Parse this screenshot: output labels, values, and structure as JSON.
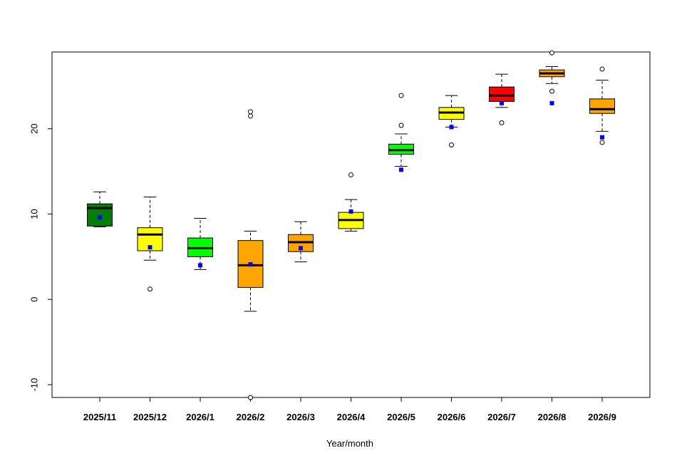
{
  "chart_data": {
    "type": "box",
    "title": "",
    "xlabel": "Year/month",
    "ylabel": "",
    "ylim": [
      -11.5,
      29
    ],
    "yticks": [
      -10,
      0,
      10,
      20
    ],
    "ytick_labels": [
      "-10",
      "0",
      "10",
      "20"
    ],
    "grid": false,
    "legend": "none",
    "categories": [
      "2025/11",
      "2025/12",
      "2026/1",
      "2026/2",
      "2026/3",
      "2026/4",
      "2026/5",
      "2026/6",
      "2026/7",
      "2026/8",
      "2026/9"
    ],
    "boxes": [
      {
        "q1": 8.6,
        "median": 10.7,
        "q3": 11.2,
        "whisker_low": 8.5,
        "whisker_high": 12.6,
        "mean": 9.6,
        "outliers": [],
        "color": "#007f00"
      },
      {
        "q1": 5.7,
        "median": 7.6,
        "q3": 8.4,
        "whisker_low": 4.6,
        "whisker_high": 12.0,
        "mean": 6.1,
        "outliers": [
          1.2
        ],
        "color": "#ffff00"
      },
      {
        "q1": 5.0,
        "median": 6.0,
        "q3": 7.2,
        "whisker_low": 3.5,
        "whisker_high": 9.5,
        "mean": 4.0,
        "outliers": [],
        "color": "#00ff00"
      },
      {
        "q1": 1.4,
        "median": 4.0,
        "q3": 6.9,
        "whisker_low": -1.4,
        "whisker_high": 8.0,
        "mean": 4.1,
        "outliers": [
          21.5,
          22.0,
          -11.5
        ],
        "color": "#ffa500"
      },
      {
        "q1": 5.6,
        "median": 6.7,
        "q3": 7.6,
        "whisker_low": 4.4,
        "whisker_high": 9.1,
        "mean": 6.0,
        "outliers": [],
        "color": "#ffa500"
      },
      {
        "q1": 8.3,
        "median": 9.3,
        "q3": 10.2,
        "whisker_low": 8.0,
        "whisker_high": 11.7,
        "mean": 10.3,
        "outliers": [
          14.6
        ],
        "color": "#ffff00"
      },
      {
        "q1": 17.0,
        "median": 17.5,
        "q3": 18.2,
        "whisker_low": 15.6,
        "whisker_high": 19.4,
        "mean": 15.2,
        "outliers": [
          20.4,
          23.9
        ],
        "color": "#00ff00"
      },
      {
        "q1": 21.1,
        "median": 21.9,
        "q3": 22.5,
        "whisker_low": 20.2,
        "whisker_high": 23.9,
        "mean": 20.2,
        "outliers": [
          18.1
        ],
        "color": "#ffff00"
      },
      {
        "q1": 23.2,
        "median": 23.9,
        "q3": 24.9,
        "whisker_low": 22.5,
        "whisker_high": 26.4,
        "mean": 23.0,
        "outliers": [
          20.7
        ],
        "color": "#ff0000"
      },
      {
        "q1": 26.1,
        "median": 26.5,
        "q3": 26.9,
        "whisker_low": 25.3,
        "whisker_high": 27.3,
        "mean": 23.0,
        "outliers": [
          24.4,
          28.9
        ],
        "color": "#ffa500"
      },
      {
        "q1": 21.8,
        "median": 22.3,
        "q3": 23.5,
        "whisker_low": 19.7,
        "whisker_high": 25.7,
        "mean": 19.0,
        "outliers": [
          18.4,
          27.0
        ],
        "color": "#ffa500"
      }
    ],
    "mean_marker_color": "#0000ff"
  }
}
